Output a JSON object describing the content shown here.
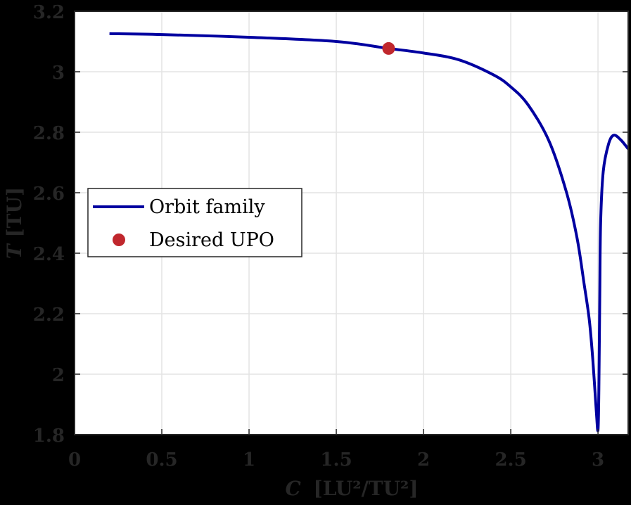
{
  "chart_data": {
    "type": "line",
    "title": "",
    "xlabel": "C [LU²/TU²]",
    "ylabel": "T [TU]",
    "xlim": [
      0,
      3.173
    ],
    "ylim": [
      1.8,
      3.2
    ],
    "grid": true,
    "legend_position": "center-left",
    "xticks": [
      0,
      0.5,
      1,
      1.5,
      2,
      2.5,
      3
    ],
    "xtick_labels": [
      "0",
      "0.5",
      "1",
      "1.5",
      "2",
      "2.5",
      "3"
    ],
    "yticks": [
      1.8,
      2,
      2.2,
      2.4,
      2.6,
      2.8,
      3,
      3.2
    ],
    "ytick_labels": [
      "1.8",
      "2",
      "2.2",
      "2.4",
      "2.6",
      "2.8",
      "3",
      "3.2"
    ],
    "series": [
      {
        "name": "Orbit family",
        "type": "line",
        "color": "#0000A0",
        "x": [
          0.2,
          0.5,
          1.0,
          1.5,
          1.8,
          2.0,
          2.2,
          2.4,
          2.5,
          2.6,
          2.72,
          2.82,
          2.88,
          2.92,
          2.95,
          2.97,
          2.99,
          3.0,
          3.005,
          3.01,
          3.015,
          3.03,
          3.06,
          3.09,
          3.13,
          3.173
        ],
        "y": [
          3.126,
          3.123,
          3.114,
          3.1,
          3.077,
          3.062,
          3.04,
          2.99,
          2.95,
          2.89,
          2.77,
          2.6,
          2.45,
          2.3,
          2.18,
          2.05,
          1.88,
          1.815,
          1.95,
          2.25,
          2.5,
          2.67,
          2.76,
          2.79,
          2.775,
          2.745
        ]
      },
      {
        "name": "Desired UPO",
        "type": "scatter",
        "color": "#C0272D",
        "x": [
          1.8
        ],
        "y": [
          3.077
        ]
      }
    ]
  },
  "legend": {
    "items": [
      {
        "label": "Orbit family"
      },
      {
        "label": "Desired UPO"
      }
    ]
  },
  "axes": {
    "xlabel_main": "C",
    "xlabel_units": "[LU²/TU²]",
    "ylabel_main": "T",
    "ylabel_units": "[TU]"
  }
}
